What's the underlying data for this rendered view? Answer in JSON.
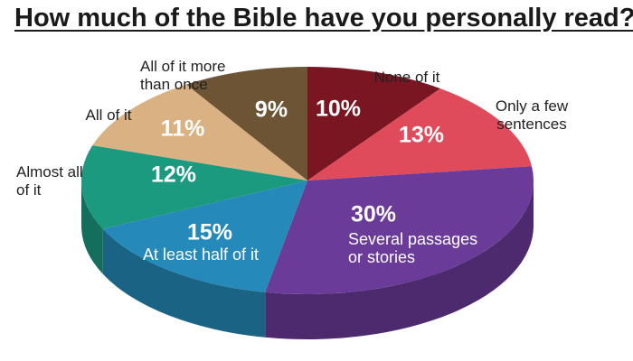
{
  "chart_data": {
    "type": "pie",
    "title": "How much of the Bible have you personally read?",
    "categories": [
      "None of it",
      "Only a few sentences",
      "Several passages or stories",
      "At least half of it",
      "Almost all of it",
      "All of it",
      "All of it more than once"
    ],
    "values": [
      10,
      13,
      30,
      15,
      12,
      11,
      9
    ],
    "value_labels": [
      "10%",
      "13%",
      "30%",
      "15%",
      "12%",
      "11%",
      "9%"
    ],
    "colors": [
      "#7a1522",
      "#e04b5b",
      "#6a3b98",
      "#2589b9",
      "#1b9a80",
      "#d9b182",
      "#6d5435"
    ]
  }
}
